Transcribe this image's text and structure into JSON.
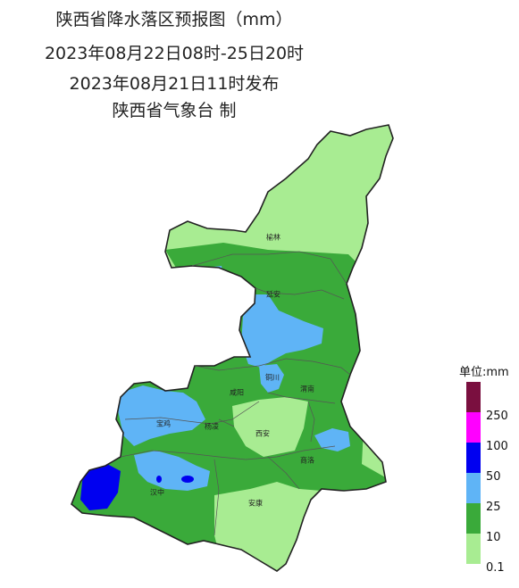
{
  "title": {
    "line1": "陕西省降水落区预报图（mm）",
    "line2": "2023年08月22日08时-25日20时",
    "line3": "2023年08月21日11时发布",
    "line4": "陕西省气象台 制"
  },
  "legend": {
    "title": "单位:mm",
    "segments": [
      {
        "color": "#7a0f3f"
      },
      {
        "color": "#ff00ff"
      },
      {
        "color": "#0000f0"
      },
      {
        "color": "#5fb4f6"
      },
      {
        "color": "#3aaa3a"
      },
      {
        "color": "#a8ec92"
      }
    ],
    "labels": [
      "250",
      "100",
      "50",
      "25",
      "10",
      "0.1"
    ]
  },
  "cities": {
    "yulin": "榆林",
    "yanan": "延安",
    "tongchuan": "铜川",
    "weinan": "渭南",
    "xianyang": "咸阳",
    "baoji": "宝鸡",
    "yangling": "杨凌",
    "xian": "西安",
    "shangluo": "商洛",
    "hanzhong": "汉中",
    "ankang": "安康"
  }
}
